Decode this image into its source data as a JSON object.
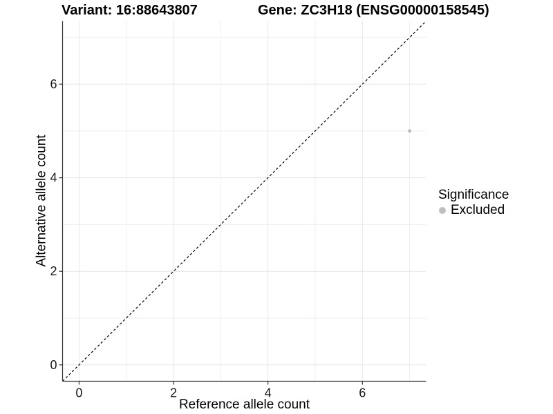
{
  "header": {
    "title_left": "Variant: 16:88643807",
    "title_right": "Gene: ZC3H18 (ENSG00000158545)"
  },
  "chart_data": {
    "type": "scatter",
    "xlabel": "Reference allele count",
    "ylabel": "Alternative allele count",
    "xlim": [
      -0.35,
      7.35
    ],
    "ylim": [
      -0.35,
      7.35
    ],
    "x_major_ticks": [
      0,
      2,
      4,
      6
    ],
    "y_major_ticks": [
      0,
      2,
      4,
      6
    ],
    "x_minor_ticks": [
      1,
      3,
      5,
      7
    ],
    "y_minor_ticks": [
      1,
      3,
      5,
      7
    ],
    "grid": true,
    "identity_line": {
      "style": "dashed",
      "color": "#000000",
      "from": -0.35,
      "to": 7.35
    },
    "series": [
      {
        "name": "Excluded",
        "color": "#bebebe",
        "points": [
          {
            "x": 7,
            "y": 5
          }
        ]
      }
    ],
    "legend": {
      "title": "Significance",
      "position": "right",
      "entries": [
        {
          "label": "Excluded",
          "color": "#bebebe"
        }
      ]
    },
    "style": {
      "axis_color": "#333333",
      "tick_label_color": "#1a1a1a",
      "major_grid_color": "#e6e6e6",
      "minor_grid_color": "#efefef"
    }
  }
}
